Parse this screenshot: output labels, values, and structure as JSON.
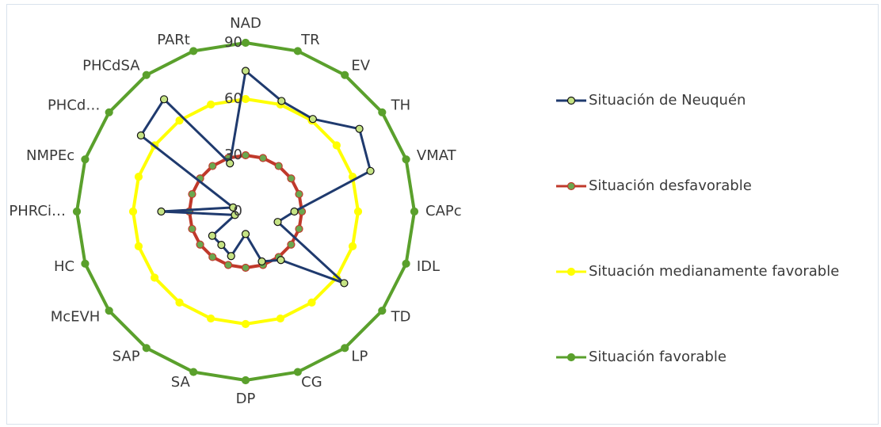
{
  "chart_data": {
    "type": "radar",
    "categories": [
      "NAD",
      "TR",
      "EV",
      "TH",
      "VMAT",
      "CAPc",
      "IDL",
      "TD",
      "LP",
      "CG",
      "DP",
      "SA",
      "SAP",
      "McEVH",
      "HC",
      "PHRCi…",
      "NMPEc",
      "PHCd…",
      "PHCdSA",
      "PARt"
    ],
    "ylim": [
      0,
      90
    ],
    "yticks": [
      0,
      30,
      60,
      90
    ],
    "grid": false,
    "legend": "right",
    "series": [
      {
        "name": "Situación de Neuquén",
        "color": "#1f3a6e",
        "marker_color": "#c5e384",
        "values": [
          75,
          62,
          61,
          75,
          70,
          26,
          18,
          65,
          32,
          28,
          12,
          25,
          22,
          22,
          6,
          45,
          7,
          69,
          74,
          27
        ]
      },
      {
        "name": "Situación desfavorable",
        "color": "#c0392b",
        "marker_color": "#6aa84f",
        "values": [
          30,
          30,
          30,
          30,
          30,
          30,
          30,
          30,
          30,
          30,
          30,
          30,
          30,
          30,
          30,
          30,
          30,
          30,
          30,
          30
        ]
      },
      {
        "name": "Situación medianamente favorable",
        "color": "#ffff00",
        "marker_color": "#ffff00",
        "values": [
          60,
          60,
          60,
          60,
          60,
          60,
          60,
          60,
          60,
          60,
          60,
          60,
          60,
          60,
          60,
          60,
          60,
          60,
          60,
          60
        ]
      },
      {
        "name": "Situación favorable",
        "color": "#5aa02c",
        "marker_color": "#5aa02c",
        "values": [
          90,
          90,
          90,
          90,
          90,
          90,
          90,
          90,
          90,
          90,
          90,
          90,
          90,
          90,
          90,
          90,
          90,
          90,
          90,
          90
        ]
      }
    ]
  }
}
